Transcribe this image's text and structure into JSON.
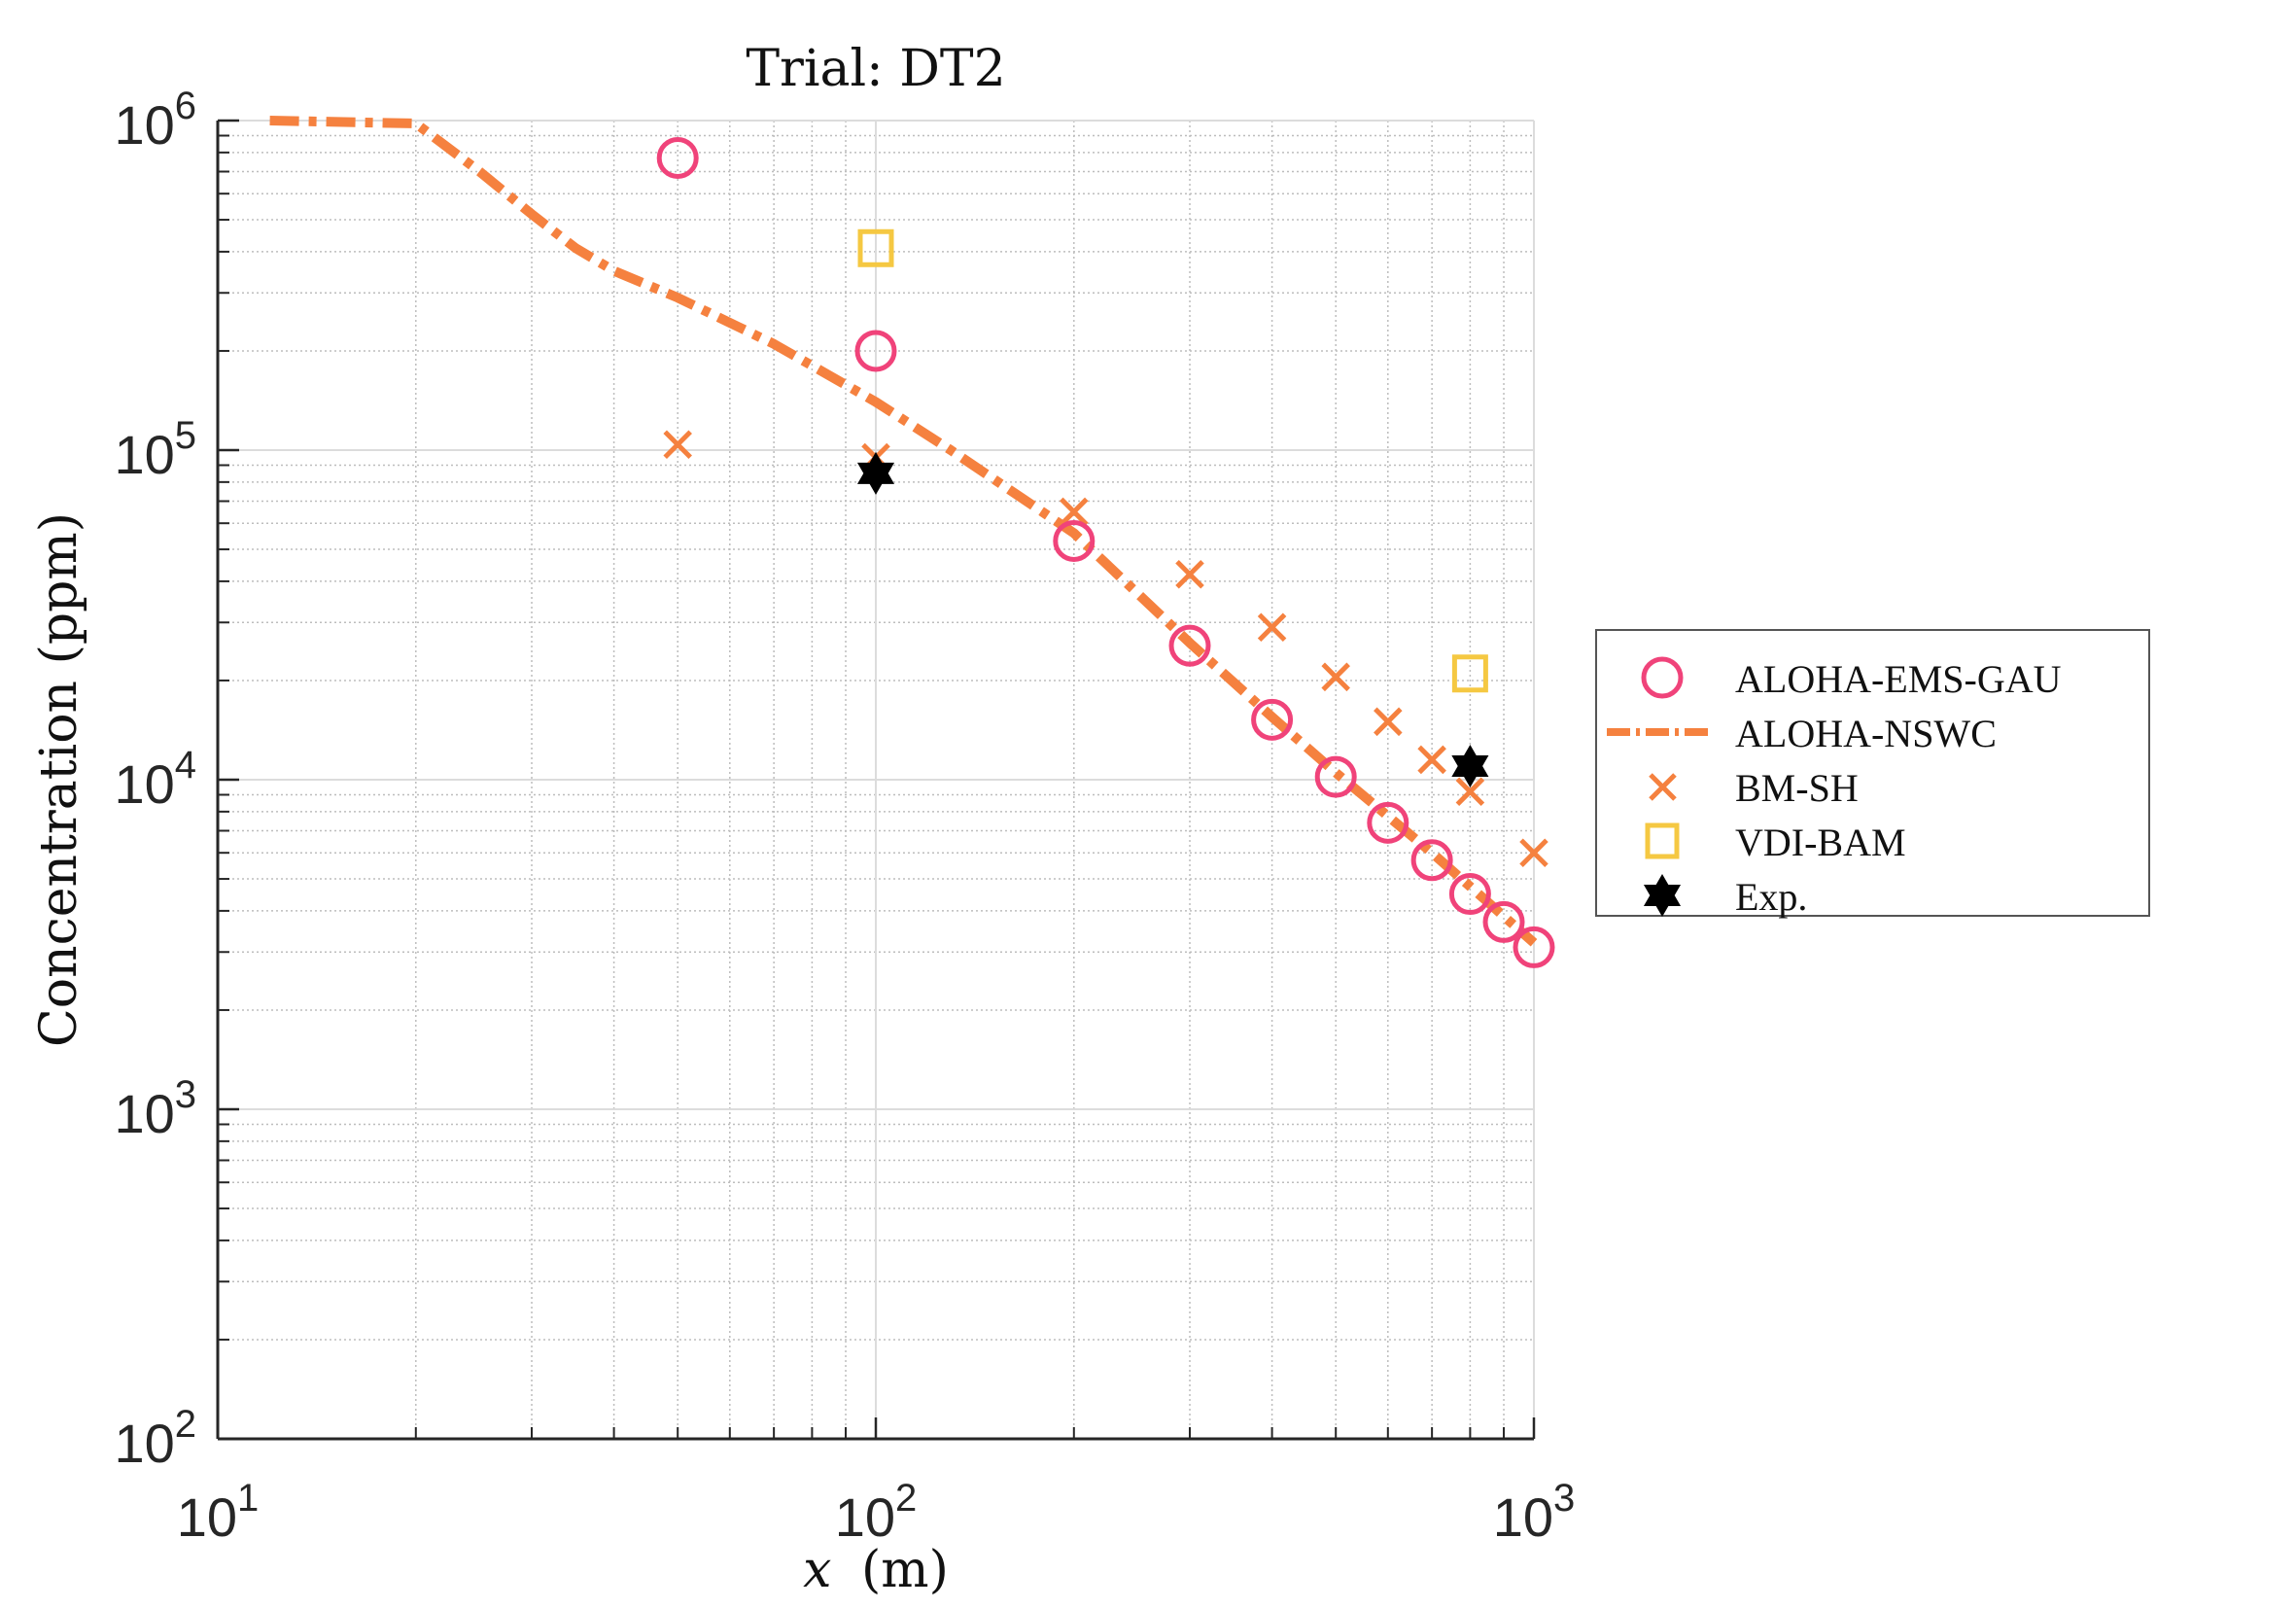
{
  "chart_data": {
    "type": "scatter",
    "title": "Trial: DT2",
    "xlabel": "x (m)",
    "xlabel_var": "x",
    "xlabel_unit": "(m)",
    "ylabel": "Concentration (ppm)",
    "xscale": "log",
    "yscale": "log",
    "xlim": [
      10,
      1000
    ],
    "ylim": [
      100,
      1000000
    ],
    "x_ticks": [
      {
        "base": "10",
        "exp": "1",
        "value": 10
      },
      {
        "base": "10",
        "exp": "2",
        "value": 100
      },
      {
        "base": "10",
        "exp": "3",
        "value": 1000
      }
    ],
    "y_ticks": [
      {
        "base": "10",
        "exp": "2",
        "value": 100
      },
      {
        "base": "10",
        "exp": "3",
        "value": 1000
      },
      {
        "base": "10",
        "exp": "4",
        "value": 10000
      },
      {
        "base": "10",
        "exp": "5",
        "value": 100000
      },
      {
        "base": "10",
        "exp": "6",
        "value": 1000000
      }
    ],
    "grid": true,
    "minor_grid": true,
    "legend_position": "outside-right",
    "series": [
      {
        "name": "ALOHA-EMS-GAU",
        "marker": "circle",
        "color": "#f0437a",
        "x": [
          50,
          100,
          200,
          300,
          400,
          500,
          600,
          700,
          800,
          900,
          1000
        ],
        "y": [
          770000,
          200000,
          53000,
          25500,
          15200,
          10200,
          7400,
          5700,
          4500,
          3700,
          3100
        ]
      },
      {
        "name": "ALOHA-NSWC",
        "marker": "dash-dot-line",
        "color": "#f5813f",
        "x": [
          12,
          20,
          25,
          30,
          35,
          40,
          50,
          70,
          100,
          130,
          200,
          300,
          400,
          500,
          700,
          1000
        ],
        "y": [
          1000000,
          980000,
          700000,
          520000,
          410000,
          350000,
          290000,
          210000,
          140000,
          100000,
          56000,
          26000,
          15500,
          10500,
          6000,
          3200
        ]
      },
      {
        "name": "BM-SH",
        "marker": "x",
        "color": "#f5813f",
        "x": [
          50,
          100,
          200,
          300,
          400,
          500,
          600,
          700,
          800,
          1000
        ],
        "y": [
          104000,
          95000,
          65000,
          42000,
          29000,
          20500,
          15000,
          11500,
          9200,
          6000
        ]
      },
      {
        "name": "VDI-BAM",
        "marker": "square",
        "color": "#f5c842",
        "x": [
          100,
          800
        ],
        "y": [
          410000,
          21000
        ]
      },
      {
        "name": "Exp.",
        "marker": "hexagram",
        "color": "#000000",
        "x": [
          100,
          800
        ],
        "y": [
          85000,
          11000
        ]
      }
    ]
  },
  "legend": {
    "items": [
      {
        "label": "ALOHA-EMS-GAU"
      },
      {
        "label": "ALOHA-NSWC"
      },
      {
        "label": "BM-SH"
      },
      {
        "label": "VDI-BAM"
      },
      {
        "label": "Exp."
      }
    ]
  }
}
